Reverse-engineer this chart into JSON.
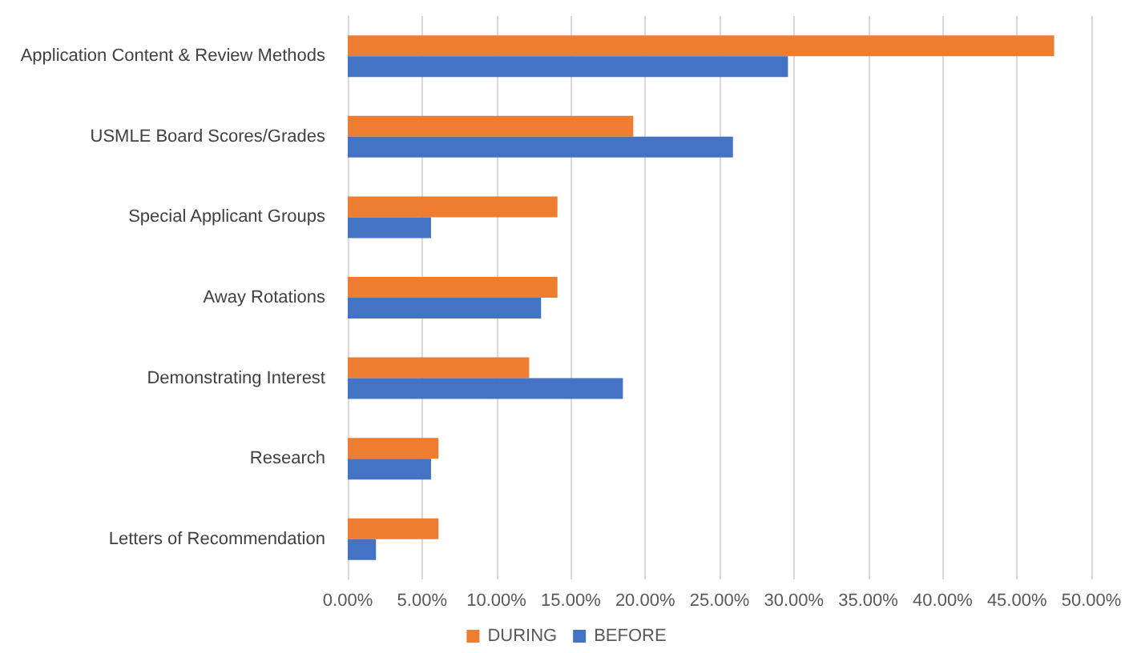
{
  "chart_data": {
    "type": "bar",
    "orientation": "horizontal",
    "categories": [
      "Application Content & Review Methods",
      "USMLE Board Scores/Grades",
      "Special Applicant Groups",
      "Away Rotations",
      "Demonstrating Interest",
      "Research",
      "Letters of Recommendation"
    ],
    "series": [
      {
        "name": "DURING",
        "color": "#ed7d31",
        "values": [
          47.5,
          19.2,
          14.1,
          14.1,
          12.2,
          6.1,
          6.1
        ]
      },
      {
        "name": "BEFORE",
        "color": "#4472c4",
        "values": [
          29.6,
          25.9,
          5.6,
          13.0,
          18.5,
          5.6,
          1.9
        ]
      }
    ],
    "xlim": [
      0,
      50
    ],
    "xticks": [
      {
        "value": 0,
        "label": "0.00%"
      },
      {
        "value": 5,
        "label": "5.00%"
      },
      {
        "value": 10,
        "label": "10.00%"
      },
      {
        "value": 15,
        "label": "15.00%"
      },
      {
        "value": 20,
        "label": "20.00%"
      },
      {
        "value": 25,
        "label": "25.00%"
      },
      {
        "value": 30,
        "label": "30.00%"
      },
      {
        "value": 35,
        "label": "35.00%"
      },
      {
        "value": 40,
        "label": "40.00%"
      },
      {
        "value": 45,
        "label": "45.00%"
      },
      {
        "value": 50,
        "label": "50.00%"
      }
    ],
    "grid": "x",
    "legend": "bottom"
  }
}
